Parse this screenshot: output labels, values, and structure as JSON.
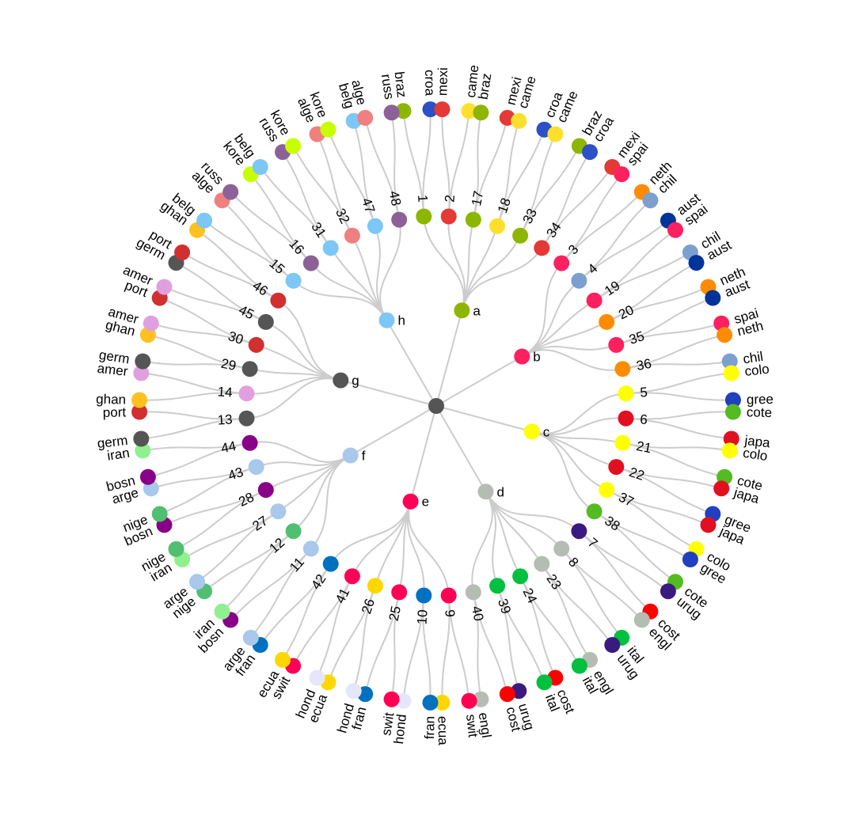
{
  "colors": {
    "link": "#cccccc",
    "root": "#555555",
    "teams": {
      "braz": "#8db600",
      "croa": "#2b50c8",
      "mexi": "#e53935",
      "came": "#fedf2c",
      "russ": "#8c6198",
      "alge": "#f08080",
      "kore": "#c8ff00",
      "belg": "#7cc7f6",
      "spai": "#ff2060",
      "neth": "#ff8c00",
      "chil": "#7c9fd0",
      "aust": "#003399",
      "ghan": "#ffc120",
      "port": "#d03030",
      "germ": "#555555",
      "amer": "#e0a0e0",
      "colo": "#ffff00",
      "gree": "#2040c0",
      "cote": "#55bb22",
      "japa": "#e01020",
      "iran": "#90f090",
      "bosn": "#880088",
      "arge": "#a8c8ec",
      "nige": "#50c070",
      "fran": "#0070c0",
      "ecua": "#ffd700",
      "swit": "#ff0055",
      "hond": "#e6e6fa",
      "cost": "#ff0000",
      "engl": "#b4bcb4",
      "ital": "#00c040",
      "urug": "#3a1a80"
    }
  },
  "groups": [
    {
      "label": "a",
      "color": "#8db600",
      "angle": -75,
      "matches": [
        {
          "label": "1",
          "color": "#8db600",
          "teams": [
            "braz",
            "croa"
          ]
        },
        {
          "label": "2",
          "color": "#e53935",
          "teams": [
            "mexi",
            "came"
          ]
        },
        {
          "label": "17",
          "color": "#8db600",
          "teams": [
            "braz",
            "mexi"
          ]
        },
        {
          "label": "18",
          "color": "#fedf2c",
          "teams": [
            "came",
            "croa"
          ]
        },
        {
          "label": "33",
          "color": "#8db600",
          "teams": [
            "came",
            "braz"
          ]
        },
        {
          "label": "34",
          "color": "#e53935",
          "teams": [
            "croa",
            "mexi"
          ]
        }
      ]
    },
    {
      "label": "b",
      "color": "#ff2060",
      "angle": -30,
      "matches": [
        {
          "label": "3",
          "color": "#ff2060",
          "teams": [
            "spai",
            "neth"
          ]
        },
        {
          "label": "4",
          "color": "#7c9fd0",
          "teams": [
            "chil",
            "aust"
          ]
        },
        {
          "label": "19",
          "color": "#ff2060",
          "teams": [
            "spai",
            "chil"
          ]
        },
        {
          "label": "20",
          "color": "#ff8c00",
          "teams": [
            "aust",
            "neth"
          ]
        },
        {
          "label": "35",
          "color": "#ff2060",
          "teams": [
            "aust",
            "spai"
          ]
        },
        {
          "label": "36",
          "color": "#ff8c00",
          "teams": [
            "neth",
            "chil"
          ]
        }
      ]
    },
    {
      "label": "c",
      "color": "#ffff00",
      "angle": 15,
      "matches": [
        {
          "label": "5",
          "color": "#ffff00",
          "teams": [
            "colo",
            "gree"
          ]
        },
        {
          "label": "6",
          "color": "#e01020",
          "teams": [
            "cote",
            "japa"
          ]
        },
        {
          "label": "21",
          "color": "#ffff00",
          "teams": [
            "colo",
            "cote"
          ]
        },
        {
          "label": "22",
          "color": "#e01020",
          "teams": [
            "japa",
            "gree"
          ]
        },
        {
          "label": "37",
          "color": "#ffff00",
          "teams": [
            "japa",
            "colo"
          ]
        },
        {
          "label": "38",
          "color": "#55bb22",
          "teams": [
            "gree",
            "cote"
          ]
        }
      ]
    },
    {
      "label": "d",
      "color": "#b4bcb4",
      "angle": 60,
      "matches": [
        {
          "label": "7",
          "color": "#3a1a80",
          "teams": [
            "urug",
            "cost"
          ]
        },
        {
          "label": "8",
          "color": "#b4bcb4",
          "teams": [
            "engl",
            "ital"
          ]
        },
        {
          "label": "23",
          "color": "#b4bcb4",
          "teams": [
            "urug",
            "engl"
          ]
        },
        {
          "label": "24",
          "color": "#00c040",
          "teams": [
            "ital",
            "cost"
          ]
        },
        {
          "label": "39",
          "color": "#00c040",
          "teams": [
            "ital",
            "urug"
          ]
        },
        {
          "label": "40",
          "color": "#b4bcb4",
          "teams": [
            "cost",
            "engl"
          ]
        }
      ]
    },
    {
      "label": "e",
      "color": "#ff0055",
      "angle": 105,
      "matches": [
        {
          "label": "9",
          "color": "#ff0055",
          "teams": [
            "swit",
            "ecua"
          ]
        },
        {
          "label": "10",
          "color": "#0070c0",
          "teams": [
            "fran",
            "hond"
          ]
        },
        {
          "label": "25",
          "color": "#ff0055",
          "teams": [
            "swit",
            "fran"
          ]
        },
        {
          "label": "26",
          "color": "#ffd700",
          "teams": [
            "hond",
            "ecua"
          ]
        },
        {
          "label": "41",
          "color": "#ff0055",
          "teams": [
            "hond",
            "swit"
          ]
        },
        {
          "label": "42",
          "color": "#0070c0",
          "teams": [
            "ecua",
            "fran"
          ]
        }
      ]
    },
    {
      "label": "f",
      "color": "#a8c8ec",
      "angle": 150,
      "matches": [
        {
          "label": "11",
          "color": "#a8c8ec",
          "teams": [
            "arge",
            "bosn"
          ]
        },
        {
          "label": "12",
          "color": "#50c070",
          "teams": [
            "iran",
            "nige"
          ]
        },
        {
          "label": "27",
          "color": "#a8c8ec",
          "teams": [
            "arge",
            "iran"
          ]
        },
        {
          "label": "28",
          "color": "#880088",
          "teams": [
            "nige",
            "bosn"
          ]
        },
        {
          "label": "43",
          "color": "#a8c8ec",
          "teams": [
            "nige",
            "arge"
          ]
        },
        {
          "label": "44",
          "color": "#880088",
          "teams": [
            "bosn",
            "iran"
          ]
        }
      ]
    },
    {
      "label": "g",
      "color": "#555555",
      "angle": 195,
      "matches": [
        {
          "label": "13",
          "color": "#555555",
          "teams": [
            "germ",
            "port"
          ]
        },
        {
          "label": "14",
          "color": "#e0a0e0",
          "teams": [
            "ghan",
            "amer"
          ]
        },
        {
          "label": "29",
          "color": "#555555",
          "teams": [
            "germ",
            "ghan"
          ]
        },
        {
          "label": "30",
          "color": "#d03030",
          "teams": [
            "amer",
            "port"
          ]
        },
        {
          "label": "45",
          "color": "#555555",
          "teams": [
            "amer",
            "germ"
          ]
        },
        {
          "label": "46",
          "color": "#d03030",
          "teams": [
            "port",
            "ghan"
          ]
        }
      ]
    },
    {
      "label": "h",
      "color": "#7cc7f6",
      "angle": 240,
      "matches": [
        {
          "label": "15",
          "color": "#7cc7f6",
          "teams": [
            "belg",
            "alge"
          ]
        },
        {
          "label": "16",
          "color": "#8c6198",
          "teams": [
            "russ",
            "kore"
          ]
        },
        {
          "label": "31",
          "color": "#7cc7f6",
          "teams": [
            "belg",
            "russ"
          ]
        },
        {
          "label": "32",
          "color": "#f08080",
          "teams": [
            "kore",
            "alge"
          ]
        },
        {
          "label": "47",
          "color": "#7cc7f6",
          "teams": [
            "kore",
            "belg"
          ]
        },
        {
          "label": "48",
          "color": "#8c6198",
          "teams": [
            "alge",
            "russ"
          ]
        }
      ]
    }
  ]
}
